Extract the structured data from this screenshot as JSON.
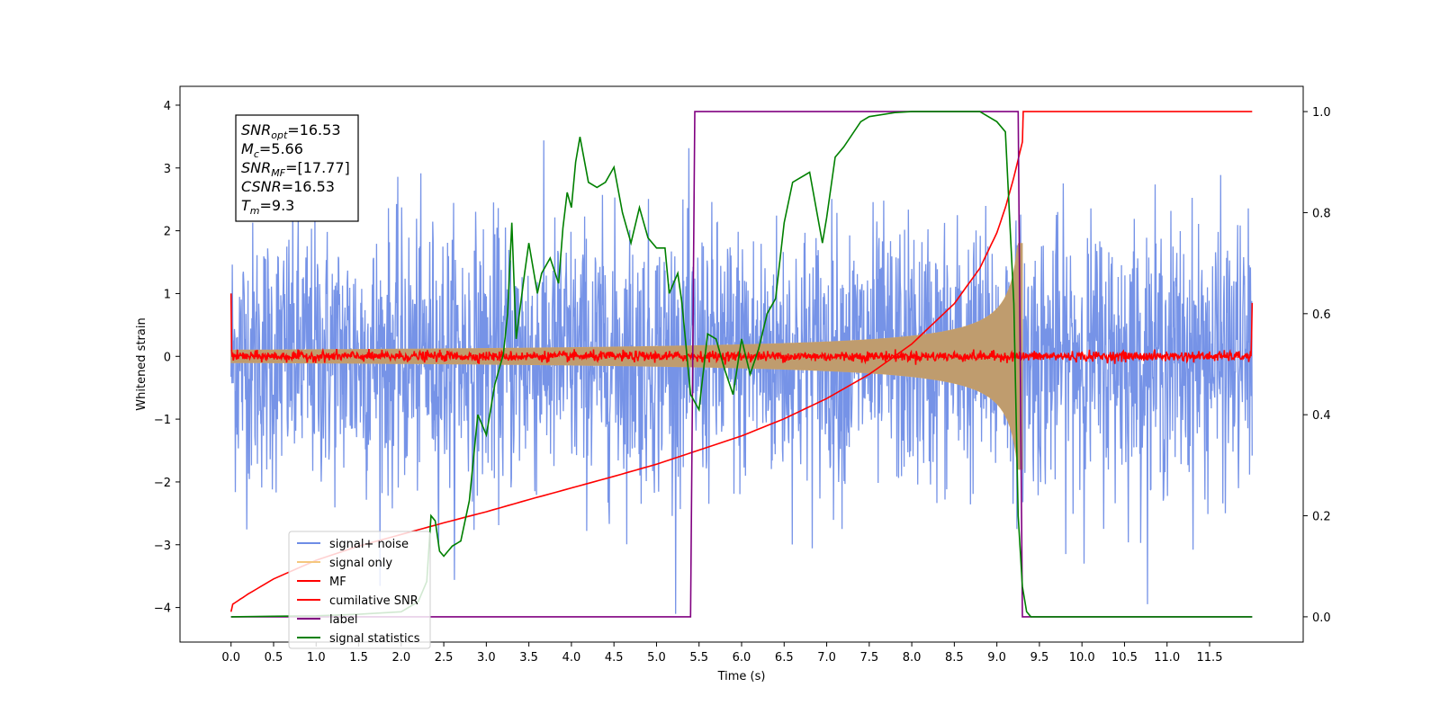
{
  "chart_data": {
    "type": "line",
    "xlabel": "Time (s)",
    "ylabel": "Whitened strain",
    "xlim": [
      -0.6,
      12.6
    ],
    "ylim": [
      -4.55,
      4.3
    ],
    "y2lim": [
      -0.05,
      1.05
    ],
    "xticks": [
      0.0,
      0.5,
      1.0,
      1.5,
      2.0,
      2.5,
      3.0,
      3.5,
      4.0,
      4.5,
      5.0,
      5.5,
      6.0,
      6.5,
      7.0,
      7.5,
      8.0,
      8.5,
      9.0,
      9.5,
      10.0,
      10.5,
      11.0,
      11.5
    ],
    "xtick_labels": [
      "0.0",
      "0.5",
      "1.0",
      "1.5",
      "2.0",
      "2.5",
      "3.0",
      "3.5",
      "4.0",
      "4.5",
      "5.0",
      "5.5",
      "6.0",
      "6.5",
      "7.0",
      "7.5",
      "8.0",
      "8.5",
      "9.0",
      "9.5",
      "10.0",
      "10.5",
      "11.0",
      "11.5"
    ],
    "yticks": [
      -4,
      -3,
      -2,
      -1,
      0,
      1,
      2,
      3,
      4
    ],
    "ytick_labels": [
      "−4",
      "−3",
      "−2",
      "−1",
      "0",
      "1",
      "2",
      "3",
      "4"
    ],
    "y2ticks": [
      0.0,
      0.2,
      0.4,
      0.6,
      0.8,
      1.0
    ],
    "y2tick_labels": [
      "0.0",
      "0.2",
      "0.4",
      "0.6",
      "0.8",
      "1.0"
    ],
    "grid": false,
    "legend_position": "lower-left",
    "annotation": {
      "lines": [
        {
          "sym": "SNR",
          "sub": "opt",
          "val": "=16.53"
        },
        {
          "sym": "M",
          "sub": "c",
          "val": "=5.66"
        },
        {
          "sym": "SNR",
          "sub": "MF",
          "val": "=[17.77]"
        },
        {
          "sym": "CSNR",
          "sub": "",
          "val": "=16.53"
        },
        {
          "sym": "T",
          "sub": "m",
          "val": "=9.3"
        }
      ]
    },
    "series": [
      {
        "name": "signal+ noise",
        "color": "#6f8de6",
        "axis": "left",
        "style": "noise",
        "t_start": 0.0,
        "t_end": 12.0,
        "amplitude_sd": 1.0,
        "peak_range": [
          -4.1,
          3.95
        ]
      },
      {
        "name": "signal only",
        "color": "#f5c77e",
        "axis": "left",
        "style": "chirp",
        "t_start": 0.0,
        "t_merger": 9.3,
        "t_end": 12.0,
        "envelope_start": 0.1,
        "envelope_peak": 1.8
      },
      {
        "name": "MF",
        "color": "#ff0000",
        "axis": "left",
        "style": "mf",
        "t_start": 0.0,
        "t_end": 12.0,
        "start_value": 1.0,
        "end_value": 0.85,
        "noise_sd": 0.04
      },
      {
        "name": "cumilative SNR",
        "color": "#ff0000",
        "axis": "right",
        "x": [
          0.0,
          0.02,
          0.2,
          0.5,
          1.0,
          1.5,
          2.0,
          2.5,
          3.0,
          3.5,
          4.0,
          4.5,
          5.0,
          5.5,
          6.0,
          6.5,
          7.0,
          7.5,
          8.0,
          8.5,
          8.8,
          9.0,
          9.1,
          9.2,
          9.3,
          9.31,
          12.0
        ],
        "values": [
          0.01,
          0.025,
          0.045,
          0.075,
          0.112,
          0.14,
          0.163,
          0.186,
          0.208,
          0.232,
          0.255,
          0.278,
          0.302,
          0.33,
          0.358,
          0.392,
          0.432,
          0.48,
          0.54,
          0.62,
          0.69,
          0.76,
          0.81,
          0.87,
          0.94,
          1.0,
          1.0
        ]
      },
      {
        "name": "label",
        "color": "#800080",
        "axis": "right",
        "x": [
          0.0,
          5.4,
          5.45,
          9.25,
          9.3,
          12.0
        ],
        "values": [
          0.0,
          0.0,
          1.0,
          1.0,
          0.0,
          0.0
        ]
      },
      {
        "name": "signal statistics",
        "color": "#008000",
        "axis": "right",
        "x": [
          0.0,
          0.5,
          1.0,
          1.5,
          2.0,
          2.2,
          2.3,
          2.35,
          2.4,
          2.45,
          2.5,
          2.55,
          2.6,
          2.7,
          2.8,
          2.9,
          3.0,
          3.1,
          3.2,
          3.25,
          3.3,
          3.35,
          3.45,
          3.5,
          3.6,
          3.65,
          3.75,
          3.85,
          3.9,
          3.95,
          4.0,
          4.05,
          4.1,
          4.2,
          4.3,
          4.4,
          4.5,
          4.6,
          4.7,
          4.8,
          4.9,
          5.0,
          5.1,
          5.15,
          5.25,
          5.3,
          5.4,
          5.5,
          5.6,
          5.7,
          5.8,
          5.9,
          6.0,
          6.1,
          6.2,
          6.3,
          6.4,
          6.5,
          6.6,
          6.8,
          6.95,
          7.0,
          7.1,
          7.2,
          7.4,
          7.5,
          7.8,
          8.0,
          8.3,
          8.6,
          8.8,
          9.0,
          9.1,
          9.2,
          9.25,
          9.3,
          9.35,
          9.4,
          12.0
        ],
        "values": [
          0.0,
          0.001,
          0.002,
          0.005,
          0.01,
          0.03,
          0.07,
          0.2,
          0.19,
          0.13,
          0.12,
          0.13,
          0.14,
          0.15,
          0.23,
          0.4,
          0.36,
          0.46,
          0.52,
          0.6,
          0.78,
          0.55,
          0.68,
          0.74,
          0.64,
          0.68,
          0.71,
          0.66,
          0.77,
          0.84,
          0.81,
          0.9,
          0.95,
          0.86,
          0.85,
          0.86,
          0.89,
          0.8,
          0.74,
          0.81,
          0.75,
          0.73,
          0.73,
          0.64,
          0.68,
          0.62,
          0.44,
          0.41,
          0.56,
          0.55,
          0.49,
          0.44,
          0.55,
          0.48,
          0.53,
          0.6,
          0.63,
          0.78,
          0.86,
          0.88,
          0.74,
          0.79,
          0.91,
          0.93,
          0.98,
          0.99,
          0.998,
          1.0,
          1.0,
          1.0,
          1.0,
          0.98,
          0.96,
          0.62,
          0.2,
          0.06,
          0.01,
          0.0,
          0.0
        ]
      }
    ]
  }
}
